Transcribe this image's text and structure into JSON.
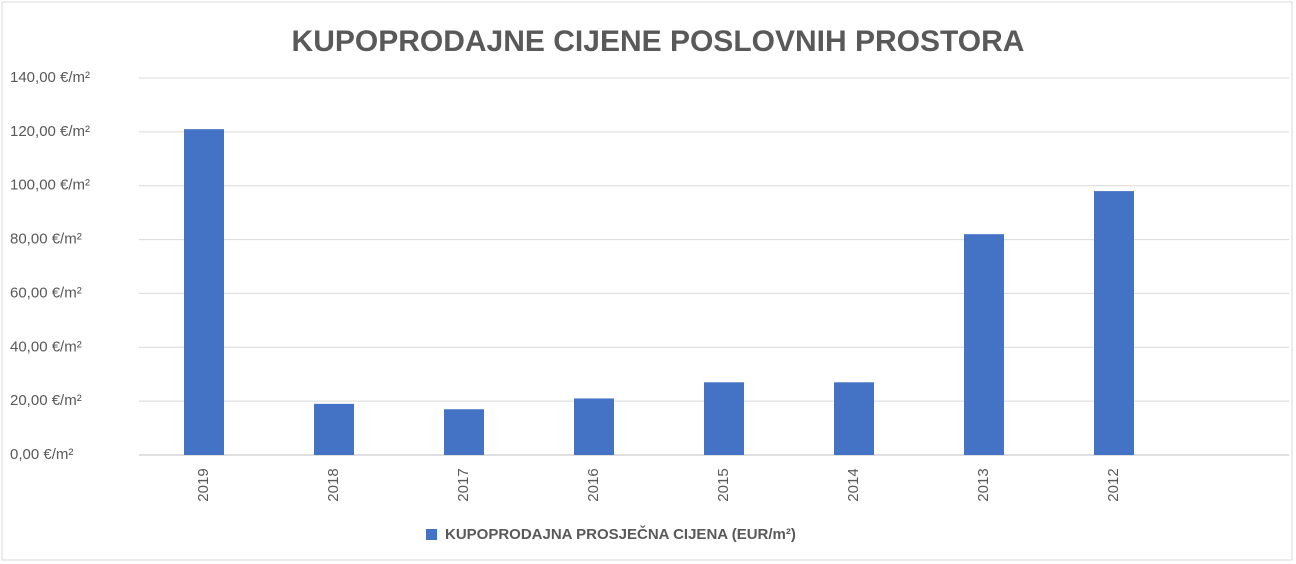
{
  "chart_data": {
    "type": "bar",
    "title": "KUPOPRODAJNE CIJENE POSLOVNIH PROSTORA",
    "categories": [
      "2019",
      "2018",
      "2017",
      "2016",
      "2015",
      "2014",
      "2013",
      "2012"
    ],
    "series": [
      {
        "name": "KUPOPRODAJNA PROSJEČNA CIJENA (EUR/m²)",
        "color": "#4472c4",
        "values": [
          121,
          19,
          17,
          21,
          27,
          27,
          82,
          98
        ]
      }
    ],
    "ylim": [
      0,
      140
    ],
    "yticks": [
      {
        "value": 0,
        "label": "0,00 €/m²"
      },
      {
        "value": 20,
        "label": "20,00 €/m²"
      },
      {
        "value": 40,
        "label": "40,00 €/m²"
      },
      {
        "value": 60,
        "label": "60,00 €/m²"
      },
      {
        "value": 80,
        "label": "80,00 €/m²"
      },
      {
        "value": 100,
        "label": "100,00 €/m²"
      },
      {
        "value": 120,
        "label": "120,00 €/m²"
      },
      {
        "value": 140,
        "label": "140,00 €/m²"
      }
    ],
    "grid": true,
    "legend": "bottom"
  }
}
